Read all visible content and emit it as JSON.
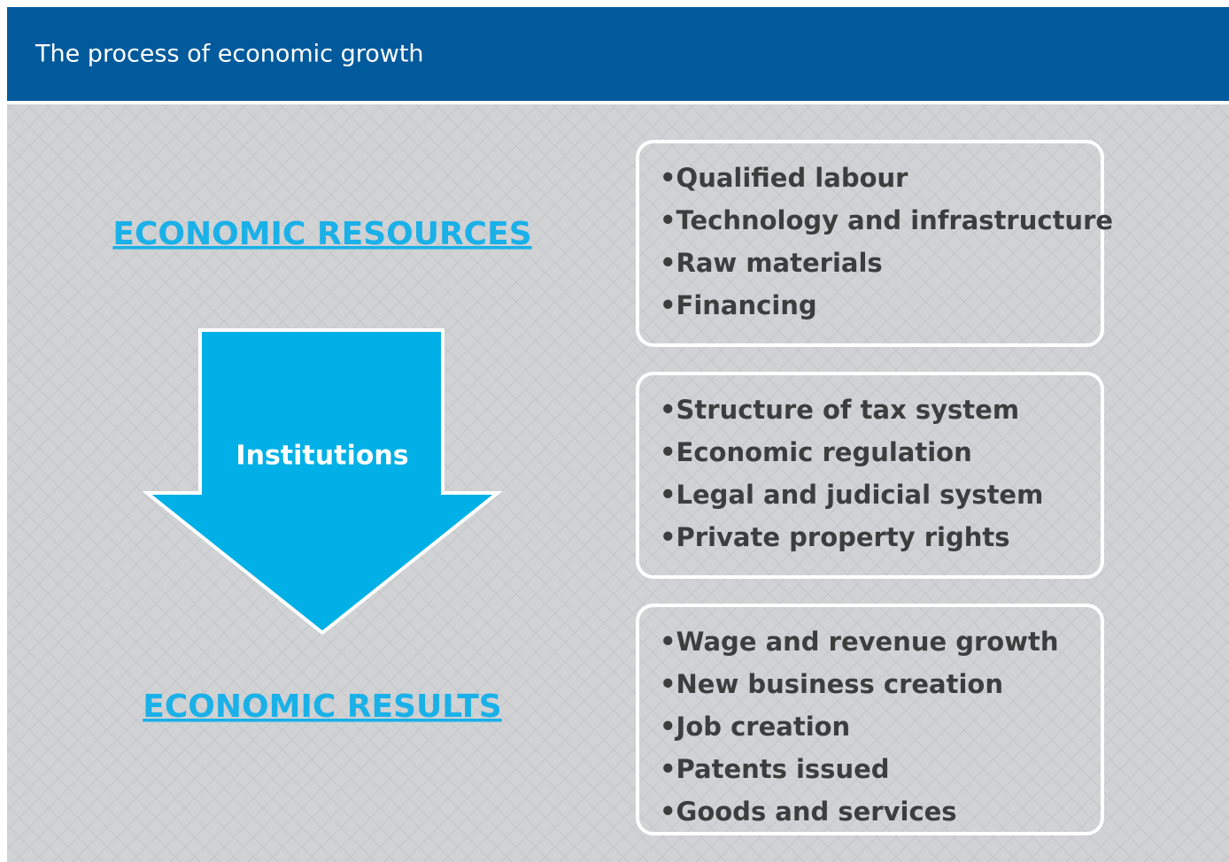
{
  "header": {
    "title": "The process of economic growth"
  },
  "flow": {
    "top_label": "ECONOMIC RESOURCES",
    "arrow_label": "Institutions",
    "bottom_label": "ECONOMIC RESULTS"
  },
  "boxes": [
    {
      "items": [
        "•Qualified labour",
        "•Technology and infrastructure",
        "•Raw materials",
        "•Financing"
      ]
    },
    {
      "items": [
        "•Structure of tax system",
        "•Economic regulation",
        "•Legal and judicial system",
        "•Private property rights"
      ]
    },
    {
      "items": [
        "•Wage and revenue growth",
        "•New business creation",
        "•Job creation",
        "•Patents issued",
        "•Goods and services"
      ]
    }
  ]
}
